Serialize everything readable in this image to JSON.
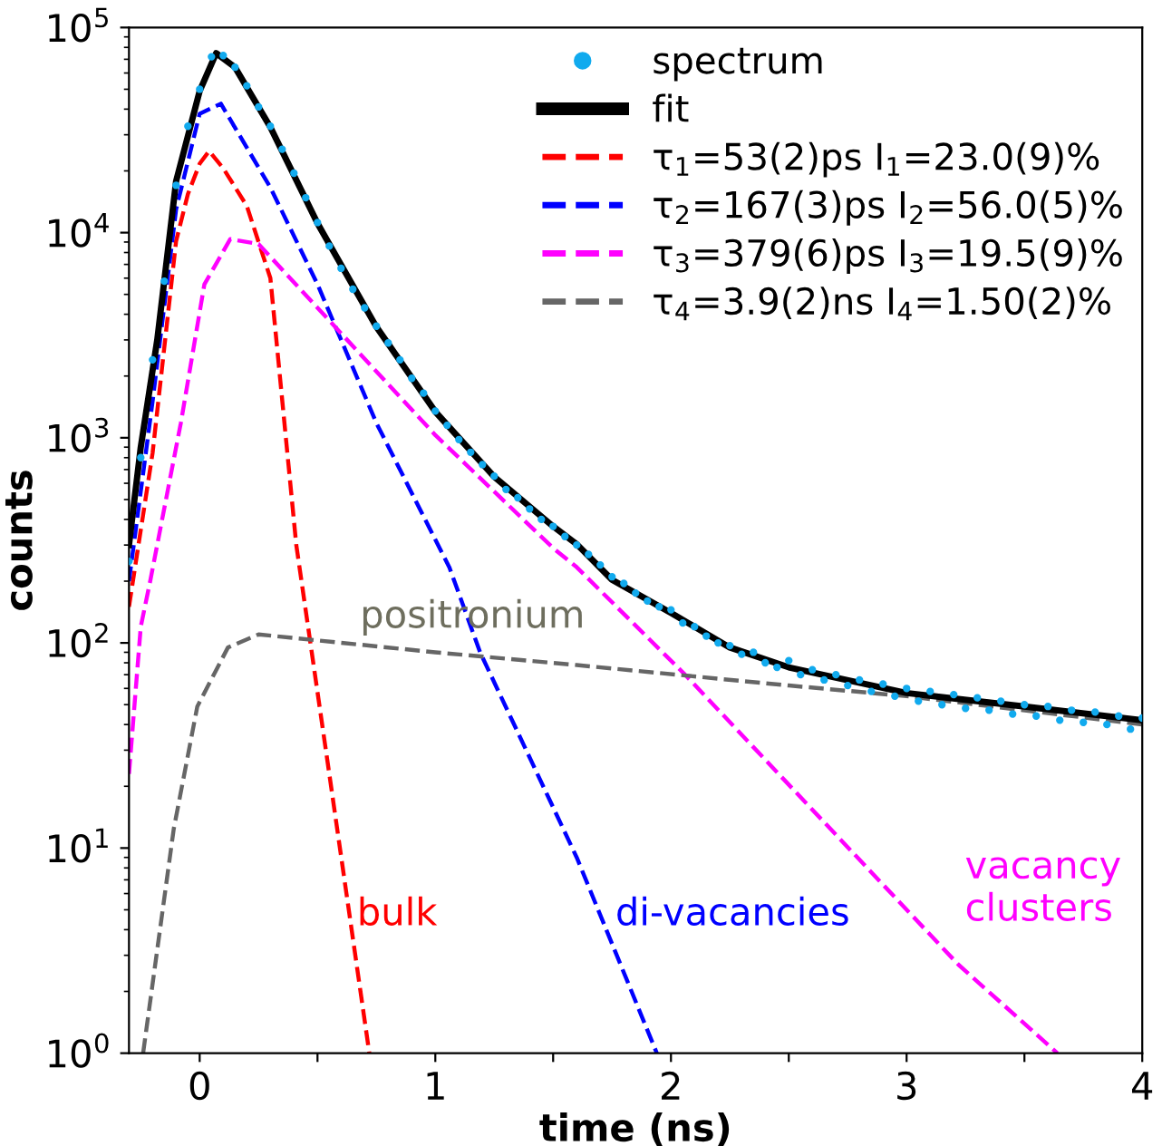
{
  "chart_data": {
    "type": "line",
    "xlabel": "time (ns)",
    "ylabel": "counts",
    "log": "y",
    "grid": false,
    "legend": "top right",
    "xlim": [
      -0.3,
      4
    ],
    "xticks": [
      0,
      {
        "value": 0.5,
        "label": null
      },
      1,
      {
        "value": 1.5,
        "label": null
      },
      2,
      {
        "value": 2.5,
        "label": null
      },
      3,
      {
        "value": 3.5,
        "label": null
      },
      4
    ],
    "ylim": [
      1,
      100000
    ],
    "yticks": [
      {
        "value": 1,
        "label": "10$^{0}$"
      },
      {
        "value": 10,
        "label": "10$^{1}$"
      },
      {
        "value": 100,
        "label": "10$^{2}$"
      },
      {
        "value": 1000,
        "label": "10$^{3}$"
      },
      {
        "value": 10000,
        "label": "10$^{4}$"
      },
      {
        "value": 100000,
        "label": "10$^{5}$"
      }
    ],
    "series": [
      {
        "name": "spectrum",
        "type": "scatter",
        "marker": "circle",
        "color": "#11aaee",
        "x": [
          -0.3,
          -0.25,
          -0.2,
          -0.15,
          -0.1,
          -0.05,
          0,
          0.05,
          0.1,
          0.15,
          0.2,
          0.25,
          0.3,
          0.35,
          0.4,
          0.45,
          0.5,
          0.55,
          0.6,
          0.65,
          0.7,
          0.75,
          0.8,
          0.85,
          0.9,
          0.95,
          1.0,
          1.05,
          1.1,
          1.15,
          1.2,
          1.25,
          1.3,
          1.35,
          1.4,
          1.45,
          1.5,
          1.55,
          1.6,
          1.65,
          1.7,
          1.75,
          1.8,
          1.85,
          1.9,
          1.95,
          2.0,
          2.05,
          2.1,
          2.15,
          2.2,
          2.25,
          2.3,
          2.35,
          2.4,
          2.45,
          2.5,
          2.55,
          2.6,
          2.65,
          2.7,
          2.75,
          2.8,
          2.85,
          2.9,
          2.95,
          3.0,
          3.05,
          3.1,
          3.15,
          3.2,
          3.25,
          3.3,
          3.35,
          3.4,
          3.45,
          3.5,
          3.55,
          3.6,
          3.65,
          3.7,
          3.75,
          3.8,
          3.85,
          3.9,
          3.95,
          4.0
        ],
        "values": [
          250,
          800,
          2400,
          5800,
          17000,
          33000,
          50000,
          72000,
          73000,
          64000,
          52000,
          41000,
          33000,
          25500,
          19500,
          14800,
          11200,
          8600,
          6700,
          5300,
          4300,
          3500,
          2900,
          2400,
          1950,
          1650,
          1350,
          1150,
          980,
          850,
          740,
          650,
          560,
          510,
          450,
          400,
          370,
          330,
          300,
          270,
          240,
          210,
          195,
          175,
          160,
          150,
          145,
          125,
          120,
          108,
          100,
          97,
          88,
          90,
          80,
          76,
          82,
          70,
          74,
          66,
          70,
          62,
          66,
          58,
          63,
          55,
          60,
          52,
          58,
          50,
          56,
          48,
          54,
          47,
          52,
          45,
          50,
          44,
          49,
          42,
          47,
          41,
          46,
          40,
          44,
          38,
          43
        ]
      },
      {
        "name": "fit",
        "color": "#000000",
        "line_style": "solid",
        "x": [
          -0.3,
          -0.25,
          -0.18,
          -0.1,
          0,
          0.07,
          0.15,
          0.3,
          0.5,
          0.75,
          1.0,
          1.25,
          1.5,
          1.6,
          1.75,
          2.0,
          2.25,
          2.5,
          3.0,
          3.5,
          4.0
        ],
        "values": [
          300,
          900,
          3000,
          17800,
          49000,
          75000,
          64000,
          32700,
          11100,
          3470,
          1340,
          645,
          370,
          303,
          203,
          140,
          95,
          76,
          57,
          49,
          42
        ]
      },
      {
        "name": "τ$_{1}$=53(2)ps I$_{1}$=23.0(9)%",
        "color": "#ff0000",
        "line_style": "dashed",
        "x": [
          -0.3,
          -0.2,
          -0.1,
          -0.05,
          0,
          0.04,
          0.1,
          0.2,
          0.3,
          0.41,
          0.55,
          0.72
        ],
        "values": [
          150,
          840,
          9100,
          15400,
          21700,
          25000,
          20600,
          13500,
          6000,
          300,
          23,
          1
        ]
      },
      {
        "name": "τ$_{2}$=167(3)ps I$_{2}$=56.0(5)%",
        "color": "#0000ff",
        "line_style": "dashed",
        "x": [
          -0.3,
          -0.2,
          -0.1,
          0,
          0.09,
          0.3,
          0.5,
          0.75,
          1.06,
          1.19,
          1.6,
          1.94
        ],
        "values": [
          200,
          1500,
          13000,
          38000,
          42500,
          16600,
          5600,
          1180,
          233,
          90,
          9,
          1
        ]
      },
      {
        "name": "τ$_{3}$=379(6)ps I$_{3}$=19.5(9)%",
        "color": "#ff00ff",
        "line_style": "dashed",
        "x": [
          -0.3,
          -0.25,
          -0.21,
          -0.08,
          0.02,
          0.13,
          0.25,
          0.5,
          1.0,
          1.5,
          1.6,
          2.06,
          3.22,
          3.64
        ],
        "values": [
          23,
          120,
          200,
          1180,
          5600,
          9300,
          8800,
          4300,
          1030,
          290,
          234,
          70,
          2.7,
          1
        ]
      },
      {
        "name": "τ$_{4}$=3.9(2)ns I$_{4}$=1.50(2)%",
        "color": "#666666",
        "line_style": "dashed",
        "x": [
          -0.24,
          -0.11,
          -0.01,
          0.12,
          0.25,
          1.0,
          1.6,
          2.5,
          3.0,
          4.0
        ],
        "values": [
          1,
          12.4,
          49,
          95,
          110,
          90,
          78,
          62,
          55,
          40
        ]
      }
    ],
    "annotations": [
      "bulk",
      "di-vacancies",
      "vacancy\nclusters",
      "positronium"
    ]
  }
}
